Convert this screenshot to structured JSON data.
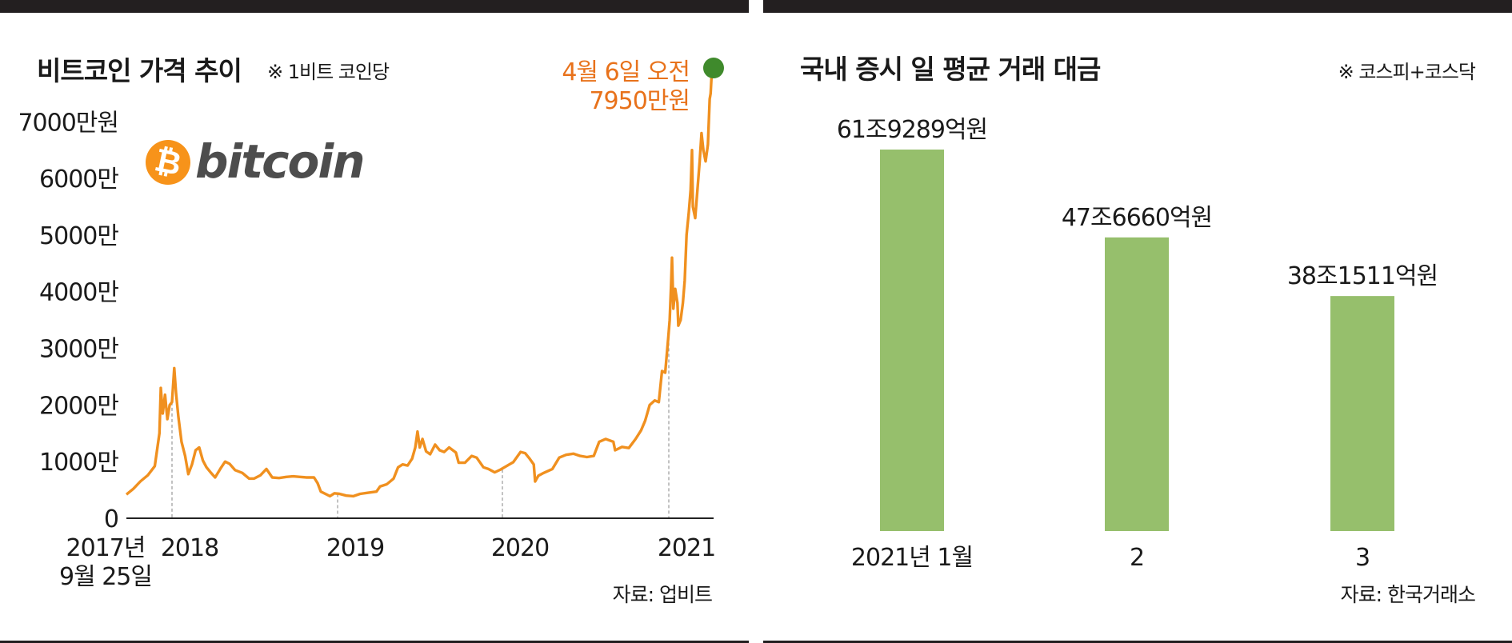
{
  "left_panel": {
    "title": "비트코인 가격 추이",
    "note": "※ 1비트 코인당",
    "logo_text": "bitcoin",
    "logo_icon": "bitcoin-coin-icon",
    "source": "자료: 업비트"
  },
  "right_panel": {
    "title": "국내 증시 일 평균 거래 대금",
    "note": "※ 코스피+코스닥",
    "source": "자료: 한국거래소"
  },
  "colors": {
    "line": "#f0901f",
    "highlight_text": "#e8721b",
    "end_marker": "#3f8a2c",
    "bar": "#96bf6c",
    "axis": "#222222",
    "guide": "#9a9a9a"
  },
  "chart_data": [
    {
      "type": "line",
      "title": "비트코인 가격 추이",
      "subtitle": "※ 1비트 코인당",
      "y_unit": "만원",
      "ylim": [
        0,
        7950
      ],
      "y_ticks": [
        {
          "value": 0,
          "label": "0"
        },
        {
          "value": 1000,
          "label": "1000만"
        },
        {
          "value": 2000,
          "label": "2000만"
        },
        {
          "value": 3000,
          "label": "3000만"
        },
        {
          "value": 4000,
          "label": "4000만"
        },
        {
          "value": 5000,
          "label": "5000만"
        },
        {
          "value": 6000,
          "label": "6000만"
        },
        {
          "value": 7000,
          "label": "7000만원"
        }
      ],
      "x_ticks": [
        {
          "x": "2017-09-25",
          "label": "2017년",
          "label2": "9월 25일"
        },
        {
          "x": "2018-01-01",
          "label": "2018"
        },
        {
          "x": "2019-01-01",
          "label": "2019"
        },
        {
          "x": "2020-01-01",
          "label": "2020"
        },
        {
          "x": "2021-01-01",
          "label": "2021"
        }
      ],
      "annotation": {
        "line1": "4월 6일 오전",
        "line2": "7950만원",
        "x": "2021-04-06",
        "y": 7950
      },
      "series": [
        {
          "values": [
            [
              "2017-09-25",
              420
            ],
            [
              "2017-10-10",
              520
            ],
            [
              "2017-10-25",
              650
            ],
            [
              "2017-11-10",
              760
            ],
            [
              "2017-11-25",
              920
            ],
            [
              "2017-12-05",
              1500
            ],
            [
              "2017-12-08",
              2300
            ],
            [
              "2017-12-12",
              1850
            ],
            [
              "2017-12-17",
              2180
            ],
            [
              "2017-12-22",
              1750
            ],
            [
              "2017-12-27",
              2000
            ],
            [
              "2018-01-01",
              2050
            ],
            [
              "2018-01-06",
              2650
            ],
            [
              "2018-01-10",
              2200
            ],
            [
              "2018-01-15",
              1800
            ],
            [
              "2018-01-22",
              1350
            ],
            [
              "2018-01-30",
              1100
            ],
            [
              "2018-02-06",
              780
            ],
            [
              "2018-02-14",
              950
            ],
            [
              "2018-02-22",
              1200
            ],
            [
              "2018-03-02",
              1250
            ],
            [
              "2018-03-10",
              1020
            ],
            [
              "2018-03-18",
              900
            ],
            [
              "2018-03-28",
              800
            ],
            [
              "2018-04-06",
              720
            ],
            [
              "2018-04-18",
              880
            ],
            [
              "2018-04-28",
              1000
            ],
            [
              "2018-05-08",
              960
            ],
            [
              "2018-05-20",
              850
            ],
            [
              "2018-06-05",
              800
            ],
            [
              "2018-06-20",
              700
            ],
            [
              "2018-07-01",
              700
            ],
            [
              "2018-07-15",
              760
            ],
            [
              "2018-07-28",
              870
            ],
            [
              "2018-08-10",
              720
            ],
            [
              "2018-08-25",
              710
            ],
            [
              "2018-09-10",
              730
            ],
            [
              "2018-09-25",
              740
            ],
            [
              "2018-10-10",
              730
            ],
            [
              "2018-10-25",
              720
            ],
            [
              "2018-11-10",
              720
            ],
            [
              "2018-11-18",
              620
            ],
            [
              "2018-11-25",
              470
            ],
            [
              "2018-12-05",
              430
            ],
            [
              "2018-12-15",
              390
            ],
            [
              "2018-12-25",
              440
            ],
            [
              "2019-01-05",
              430
            ],
            [
              "2019-01-20",
              400
            ],
            [
              "2019-02-05",
              390
            ],
            [
              "2019-02-20",
              430
            ],
            [
              "2019-03-10",
              450
            ],
            [
              "2019-03-28",
              470
            ],
            [
              "2019-04-05",
              560
            ],
            [
              "2019-04-20",
              600
            ],
            [
              "2019-05-05",
              700
            ],
            [
              "2019-05-15",
              900
            ],
            [
              "2019-05-25",
              950
            ],
            [
              "2019-06-05",
              930
            ],
            [
              "2019-06-15",
              1050
            ],
            [
              "2019-06-22",
              1250
            ],
            [
              "2019-06-27",
              1530
            ],
            [
              "2019-07-02",
              1250
            ],
            [
              "2019-07-08",
              1400
            ],
            [
              "2019-07-16",
              1180
            ],
            [
              "2019-07-25",
              1130
            ],
            [
              "2019-08-05",
              1300
            ],
            [
              "2019-08-15",
              1200
            ],
            [
              "2019-08-25",
              1170
            ],
            [
              "2019-09-05",
              1250
            ],
            [
              "2019-09-20",
              1160
            ],
            [
              "2019-09-26",
              980
            ],
            [
              "2019-10-10",
              980
            ],
            [
              "2019-10-25",
              1100
            ],
            [
              "2019-11-05",
              1070
            ],
            [
              "2019-11-20",
              900
            ],
            [
              "2019-12-01",
              870
            ],
            [
              "2019-12-15",
              810
            ],
            [
              "2019-12-28",
              860
            ],
            [
              "2020-01-10",
              920
            ],
            [
              "2020-01-25",
              990
            ],
            [
              "2020-02-10",
              1170
            ],
            [
              "2020-02-20",
              1150
            ],
            [
              "2020-03-01",
              1050
            ],
            [
              "2020-03-10",
              950
            ],
            [
              "2020-03-13",
              650
            ],
            [
              "2020-03-20",
              750
            ],
            [
              "2020-04-01",
              800
            ],
            [
              "2020-04-20",
              870
            ],
            [
              "2020-05-05",
              1070
            ],
            [
              "2020-05-20",
              1120
            ],
            [
              "2020-06-05",
              1140
            ],
            [
              "2020-06-20",
              1100
            ],
            [
              "2020-07-05",
              1080
            ],
            [
              "2020-07-20",
              1100
            ],
            [
              "2020-08-01",
              1350
            ],
            [
              "2020-08-15",
              1400
            ],
            [
              "2020-09-01",
              1350
            ],
            [
              "2020-09-05",
              1200
            ],
            [
              "2020-09-20",
              1260
            ],
            [
              "2020-10-05",
              1240
            ],
            [
              "2020-10-20",
              1400
            ],
            [
              "2020-11-01",
              1550
            ],
            [
              "2020-11-10",
              1720
            ],
            [
              "2020-11-20",
              2000
            ],
            [
              "2020-12-01",
              2080
            ],
            [
              "2020-12-10",
              2050
            ],
            [
              "2020-12-17",
              2600
            ],
            [
              "2020-12-24",
              2570
            ],
            [
              "2020-12-31",
              3200
            ],
            [
              "2021-01-03",
              3500
            ],
            [
              "2021-01-06",
              4100
            ],
            [
              "2021-01-08",
              4600
            ],
            [
              "2021-01-11",
              3700
            ],
            [
              "2021-01-15",
              4050
            ],
            [
              "2021-01-20",
              3800
            ],
            [
              "2021-01-22",
              3400
            ],
            [
              "2021-01-27",
              3500
            ],
            [
              "2021-02-01",
              3800
            ],
            [
              "2021-02-05",
              4200
            ],
            [
              "2021-02-09",
              5000
            ],
            [
              "2021-02-14",
              5400
            ],
            [
              "2021-02-18",
              5800
            ],
            [
              "2021-02-21",
              6500
            ],
            [
              "2021-02-23",
              5500
            ],
            [
              "2021-02-28",
              5300
            ],
            [
              "2021-03-05",
              5800
            ],
            [
              "2021-03-10",
              6300
            ],
            [
              "2021-03-14",
              6800
            ],
            [
              "2021-03-18",
              6500
            ],
            [
              "2021-03-23",
              6300
            ],
            [
              "2021-03-28",
              6600
            ],
            [
              "2021-04-01",
              7400
            ],
            [
              "2021-04-03",
              7500
            ],
            [
              "2021-04-06",
              7950
            ]
          ]
        }
      ]
    },
    {
      "type": "bar",
      "title": "국내 증시 일 평균 거래 대금",
      "subtitle": "※ 코스피+코스닥",
      "categories": [
        "2021년 1월",
        "2",
        "3"
      ],
      "values": [
        619289,
        476660,
        381511
      ],
      "value_unit": "억원",
      "value_labels": [
        "61조9289억원",
        "47조6660억원",
        "38조1511억원"
      ],
      "ylim": [
        0,
        619289
      ]
    }
  ]
}
